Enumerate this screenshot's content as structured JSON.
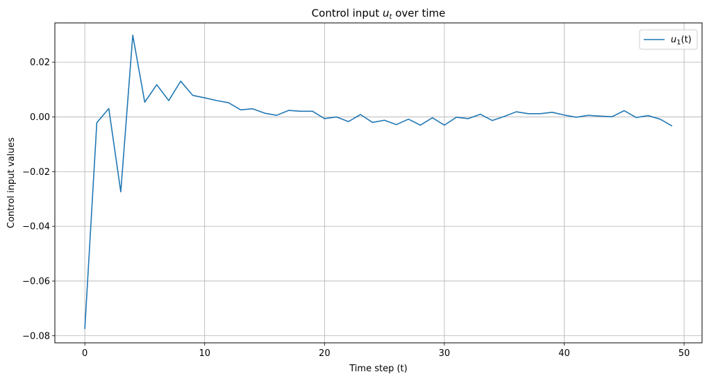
{
  "chart_data": {
    "type": "line",
    "title": "Control input uₜ over time",
    "title_parts": {
      "main": "Control input ",
      "var": "u",
      "sub": "t",
      "rest": " over time"
    },
    "xlabel": "Time step (t)",
    "ylabel": "Control input values",
    "xlim": [
      -2.5,
      51.5
    ],
    "ylim": [
      -0.0826,
      0.0344
    ],
    "xticks": [
      0,
      10,
      20,
      30,
      40,
      50
    ],
    "xtick_labels": [
      "0",
      "10",
      "20",
      "30",
      "40",
      "50"
    ],
    "yticks": [
      -0.08,
      -0.06,
      -0.04,
      -0.02,
      0.0,
      0.02
    ],
    "ytick_labels": [
      "−0.08",
      "−0.06",
      "−0.04",
      "−0.02",
      "0.00",
      "0.02"
    ],
    "grid": true,
    "legend_position": "upper right",
    "series": [
      {
        "name": "u₁(t)",
        "name_parts": {
          "var": "u",
          "sub": "1",
          "rest": "(t)"
        },
        "color": "#1f77b4",
        "x": [
          0,
          1,
          2,
          3,
          4,
          5,
          6,
          7,
          8,
          9,
          10,
          11,
          12,
          13,
          14,
          15,
          16,
          17,
          18,
          19,
          20,
          21,
          22,
          23,
          24,
          25,
          26,
          27,
          28,
          29,
          30,
          31,
          32,
          33,
          34,
          35,
          36,
          37,
          38,
          39,
          40,
          41,
          42,
          43,
          44,
          45,
          46,
          47,
          48,
          49
        ],
        "y": [
          -0.0775,
          -0.0021,
          0.0031,
          -0.0274,
          0.0299,
          0.0054,
          0.0118,
          0.006,
          0.0131,
          0.0079,
          0.007,
          0.006,
          0.0052,
          0.0026,
          0.003,
          0.0014,
          0.0006,
          0.0024,
          0.0021,
          0.0021,
          -0.0006,
          0.0,
          -0.0017,
          0.0009,
          -0.002,
          -0.0012,
          -0.0028,
          -0.0008,
          -0.003,
          -0.0003,
          -0.003,
          -0.0001,
          -0.0006,
          0.001,
          -0.0013,
          0.0002,
          0.0019,
          0.0012,
          0.0012,
          0.0017,
          0.0007,
          -0.0001,
          0.0006,
          0.0003,
          0.0001,
          0.0023,
          -0.0002,
          0.0005,
          -0.0008,
          -0.0033
        ]
      }
    ]
  }
}
